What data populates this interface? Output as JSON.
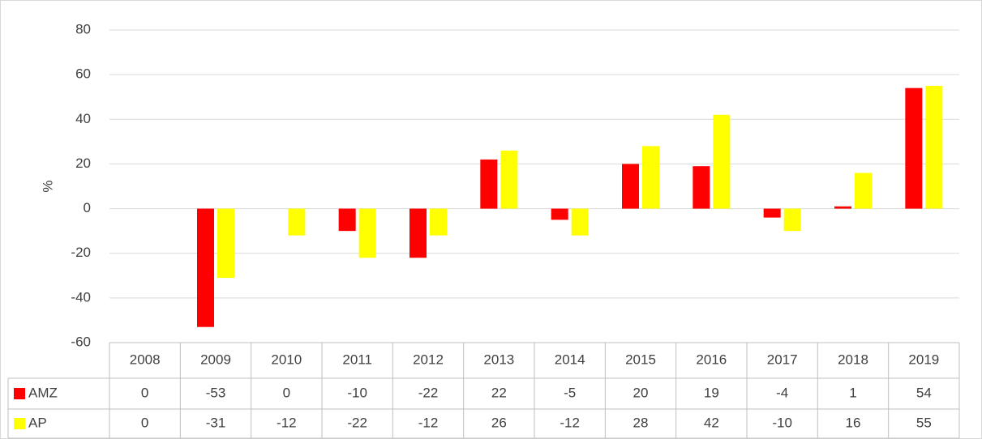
{
  "chart_data": {
    "type": "bar",
    "y_label": "%",
    "categories": [
      "2008",
      "2009",
      "2010",
      "2011",
      "2012",
      "2013",
      "2014",
      "2015",
      "2016",
      "2017",
      "2018",
      "2019"
    ],
    "series": [
      {
        "name": "AMZ",
        "color": "#ff0000",
        "values": [
          0,
          -53,
          0,
          -10,
          -22,
          22,
          -5,
          20,
          19,
          -4,
          1,
          54
        ]
      },
      {
        "name": "AP",
        "color": "#ffff00",
        "values": [
          0,
          -31,
          -12,
          -22,
          -12,
          26,
          -12,
          28,
          42,
          -10,
          16,
          55
        ]
      }
    ],
    "ylim": [
      -60,
      80
    ],
    "yticks": [
      -60,
      -40,
      -20,
      0,
      20,
      40,
      60,
      80
    ],
    "grid": true
  }
}
